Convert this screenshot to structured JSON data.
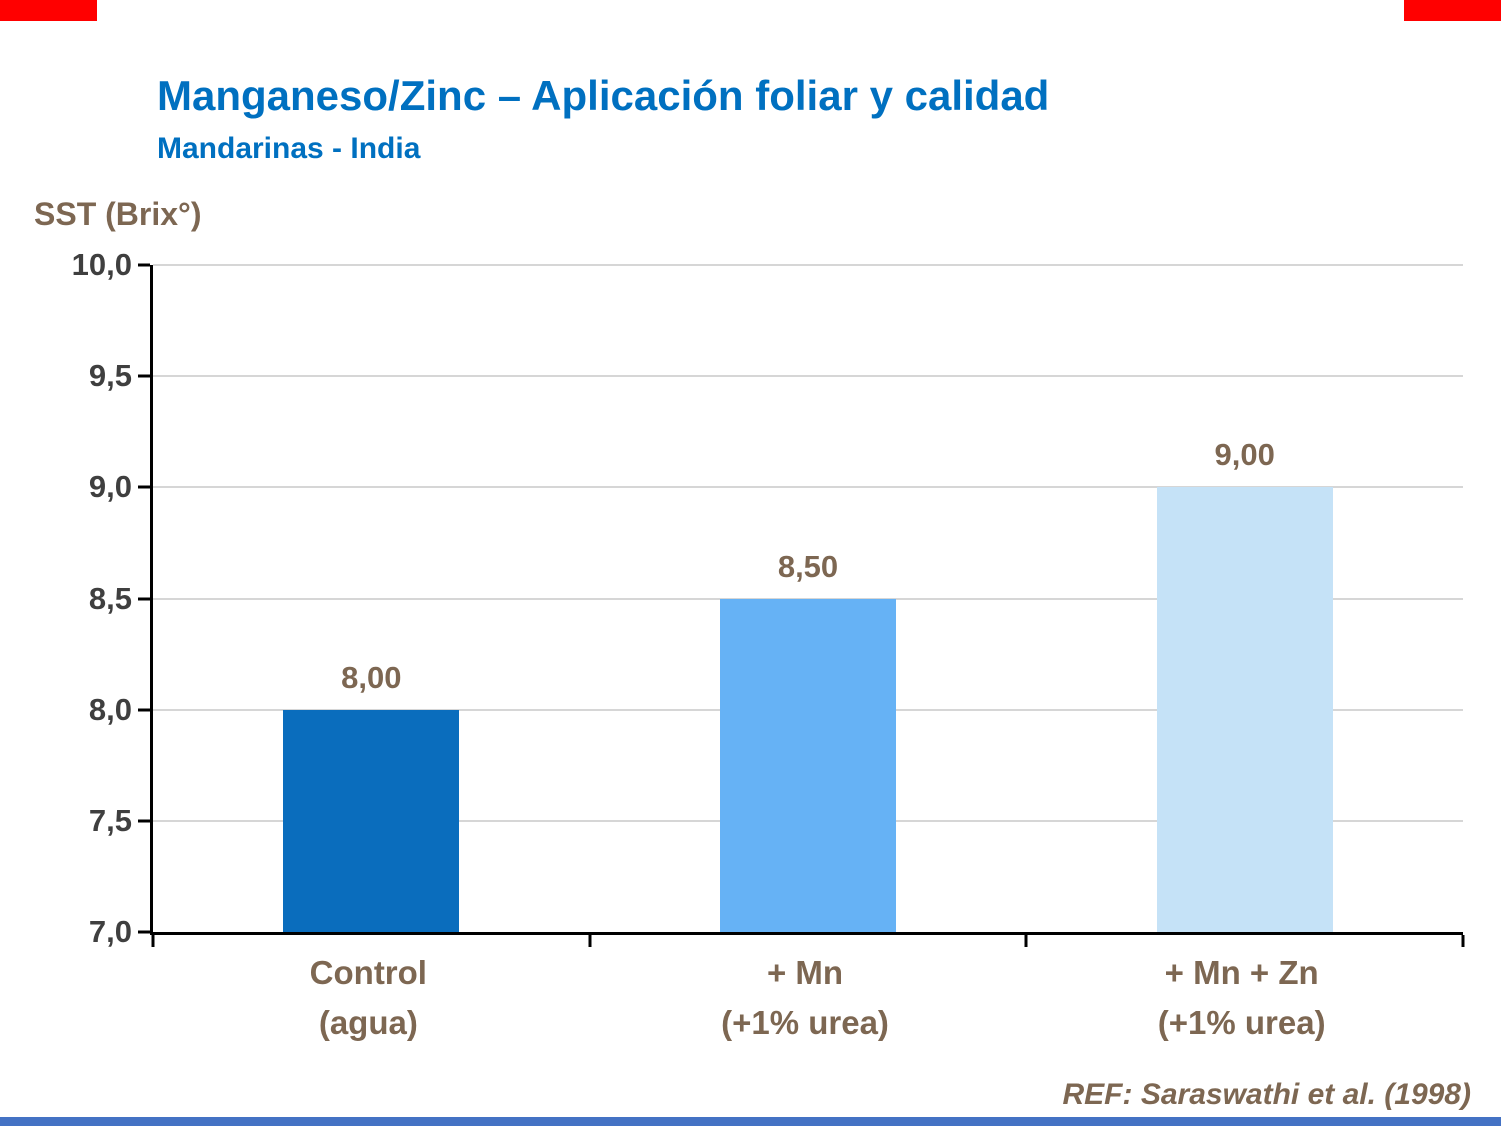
{
  "slide": {
    "title": "Manganeso/Zinc – Aplicación foliar y calidad",
    "subtitle": "Mandarinas - India",
    "ref": "REF: Saraswathi et al. (1998)",
    "colors": {
      "title_blue": "#0070C0",
      "label_brown": "#7D6752",
      "accent_red": "#FF0000",
      "bottom_strip_blue": "#4472C4",
      "gridline_gray": "#D6D6D6"
    }
  },
  "chart_data": {
    "type": "bar",
    "title": "Manganeso/Zinc – Aplicación foliar y calidad",
    "subtitle": "Mandarinas - India",
    "xlabel": "",
    "ylabel": "SST (Brix°)",
    "ylim": [
      7,
      10
    ],
    "ytick_step": 0.5,
    "yticks": [
      "10,0",
      "9,5",
      "9,0",
      "8,5",
      "8,0",
      "7,5",
      "7,0"
    ],
    "categories": [
      [
        "Control",
        "(agua)"
      ],
      [
        "+ Mn",
        "(+1% urea)"
      ],
      [
        "+ Mn + Zn",
        "(+1% urea)"
      ]
    ],
    "values": [
      8.0,
      8.5,
      9.0
    ],
    "value_labels": [
      "8,00",
      "8,50",
      "9,00"
    ],
    "bar_colors": [
      "#0A6DBD",
      "#66B2F5",
      "#C5E2F7"
    ],
    "grid": true,
    "legend": false
  }
}
